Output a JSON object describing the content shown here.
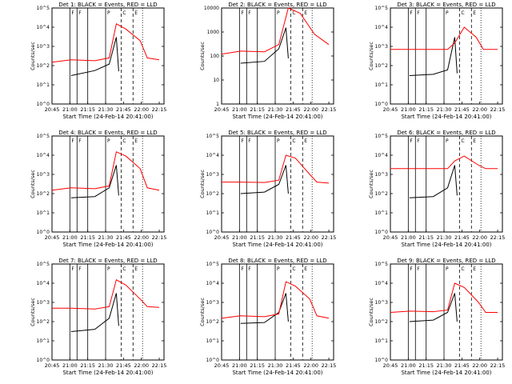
{
  "figure": {
    "xlabel": "Start Time (24-Feb-14 20:41:00)",
    "ylabel": "Counts/sec",
    "x_ticks": [
      "20:45",
      "21:00",
      "21:15",
      "21:30",
      "21:45",
      "22:00",
      "22:15"
    ],
    "colors": {
      "events": "#000000",
      "lld": "#ff0000",
      "frame": "#000000"
    },
    "marker_labels": [
      "F",
      "F",
      "P",
      "C",
      "E"
    ]
  },
  "chart_data": [
    {
      "type": "line",
      "title": "Det 1: BLACK = Events, RED = LLD",
      "xlabel": "Start Time (24-Feb-14 20:41:00)",
      "ylabel": "Counts/sec",
      "yscale": "log",
      "ylim": [
        1,
        100000
      ],
      "y_ticks": [
        "10^0",
        "10^1",
        "10^2",
        "10^3",
        "10^4",
        "10^5"
      ],
      "x_range_min": [
        4,
        98
      ],
      "solid_lines_min": [
        19,
        25,
        34,
        49
      ],
      "dashed_lines_min": [
        62,
        72
      ],
      "dotted_lines_min": [
        80
      ],
      "series": [
        {
          "name": "BLACK",
          "points": [
            [
              20,
              30
            ],
            [
              40,
              55
            ],
            [
              52,
              120
            ],
            [
              58,
              3000
            ],
            [
              60,
              50
            ]
          ]
        },
        {
          "name": "RED",
          "points": [
            [
              4,
              150
            ],
            [
              20,
              200
            ],
            [
              40,
              180
            ],
            [
              52,
              250
            ],
            [
              58,
              15000
            ],
            [
              66,
              8000
            ],
            [
              78,
              2000
            ],
            [
              84,
              250
            ],
            [
              94,
              200
            ]
          ]
        }
      ]
    },
    {
      "type": "line",
      "title": "Det 2: BLACK = Events, RED = LLD",
      "xlabel": "Start Time (24-Feb-14 20:41:00)",
      "ylabel": "Counts/sec",
      "yscale": "log",
      "ylim": [
        1,
        10000
      ],
      "y_ticks": [
        "1",
        "10",
        "100",
        "1000",
        "10000"
      ],
      "x_range_min": [
        4,
        98
      ],
      "solid_lines_min": [
        19,
        25,
        34,
        49
      ],
      "dashed_lines_min": [
        62,
        72
      ],
      "dotted_lines_min": [
        80
      ],
      "series": [
        {
          "name": "BLACK",
          "points": [
            [
              20,
              50
            ],
            [
              40,
              60
            ],
            [
              52,
              200
            ],
            [
              58,
              1500
            ],
            [
              60,
              80
            ]
          ]
        },
        {
          "name": "RED",
          "points": [
            [
              4,
              120
            ],
            [
              20,
              160
            ],
            [
              40,
              150
            ],
            [
              52,
              300
            ],
            [
              60,
              10000
            ],
            [
              70,
              6000
            ],
            [
              82,
              800
            ],
            [
              94,
              300
            ]
          ]
        }
      ]
    },
    {
      "type": "line",
      "title": "Det 3: BLACK = Events, RED = LLD",
      "xlabel": "Start Time (24-Feb-14 20:41:00)",
      "ylabel": "Counts/sec",
      "yscale": "log",
      "ylim": [
        1,
        100000
      ],
      "y_ticks": [
        "10^0",
        "10^1",
        "10^2",
        "10^3",
        "10^4",
        "10^5"
      ],
      "x_range_min": [
        4,
        98
      ],
      "solid_lines_min": [
        19,
        25,
        34,
        49
      ],
      "dashed_lines_min": [
        62,
        72
      ],
      "dotted_lines_min": [
        80
      ],
      "series": [
        {
          "name": "BLACK",
          "points": [
            [
              20,
              30
            ],
            [
              40,
              35
            ],
            [
              52,
              60
            ],
            [
              58,
              3000
            ],
            [
              60,
              40
            ]
          ]
        },
        {
          "name": "RED",
          "points": [
            [
              4,
              700
            ],
            [
              52,
              700
            ],
            [
              58,
              1500
            ],
            [
              66,
              10000
            ],
            [
              76,
              3000
            ],
            [
              82,
              700
            ],
            [
              94,
              700
            ]
          ]
        }
      ]
    },
    {
      "type": "line",
      "title": "Det 4: BLACK = Events, RED = LLD",
      "xlabel": "Start Time (24-Feb-14 20:41:00)",
      "ylabel": "Counts/sec",
      "yscale": "log",
      "ylim": [
        1,
        100000
      ],
      "y_ticks": [
        "10^0",
        "10^1",
        "10^2",
        "10^3",
        "10^4",
        "10^5"
      ],
      "x_range_min": [
        4,
        98
      ],
      "solid_lines_min": [
        19,
        25,
        34,
        49
      ],
      "dashed_lines_min": [
        62,
        72
      ],
      "dotted_lines_min": [
        80
      ],
      "series": [
        {
          "name": "BLACK",
          "points": [
            [
              20,
              60
            ],
            [
              40,
              70
            ],
            [
              52,
              200
            ],
            [
              58,
              3000
            ],
            [
              60,
              80
            ]
          ]
        },
        {
          "name": "RED",
          "points": [
            [
              4,
              150
            ],
            [
              20,
              200
            ],
            [
              40,
              180
            ],
            [
              52,
              250
            ],
            [
              58,
              15000
            ],
            [
              66,
              9000
            ],
            [
              78,
              2000
            ],
            [
              84,
              200
            ],
            [
              94,
              150
            ]
          ]
        }
      ]
    },
    {
      "type": "line",
      "title": "Det 5: BLACK = Events, RED = LLD",
      "xlabel": "Start Time (24-Feb-14 20:41:00)",
      "ylabel": "Counts/sec",
      "yscale": "log",
      "ylim": [
        1,
        100000
      ],
      "y_ticks": [
        "10^0",
        "10^1",
        "10^2",
        "10^3",
        "10^4",
        "10^5"
      ],
      "x_range_min": [
        4,
        98
      ],
      "solid_lines_min": [
        19,
        25,
        34,
        49
      ],
      "dashed_lines_min": [
        62,
        72
      ],
      "dotted_lines_min": [
        80
      ],
      "series": [
        {
          "name": "BLACK",
          "points": [
            [
              20,
              100
            ],
            [
              40,
              120
            ],
            [
              52,
              300
            ],
            [
              58,
              3000
            ],
            [
              60,
              100
            ]
          ]
        },
        {
          "name": "RED",
          "points": [
            [
              4,
              400
            ],
            [
              20,
              400
            ],
            [
              40,
              380
            ],
            [
              52,
              500
            ],
            [
              58,
              10000
            ],
            [
              66,
              7000
            ],
            [
              78,
              1000
            ],
            [
              84,
              400
            ],
            [
              94,
              350
            ]
          ]
        }
      ]
    },
    {
      "type": "line",
      "title": "Det 6: BLACK = Events, RED = LLD",
      "xlabel": "Start Time (24-Feb-14 20:41:00)",
      "ylabel": "Counts/sec",
      "yscale": "log",
      "ylim": [
        1,
        100000
      ],
      "y_ticks": [
        "10^0",
        "10^1",
        "10^2",
        "10^3",
        "10^4",
        "10^5"
      ],
      "x_range_min": [
        4,
        98
      ],
      "solid_lines_min": [
        19,
        25,
        34,
        49
      ],
      "dashed_lines_min": [
        62,
        72
      ],
      "dotted_lines_min": [
        80
      ],
      "series": [
        {
          "name": "BLACK",
          "points": [
            [
              20,
              60
            ],
            [
              40,
              70
            ],
            [
              52,
              200
            ],
            [
              58,
              3000
            ],
            [
              60,
              80
            ]
          ]
        },
        {
          "name": "RED",
          "points": [
            [
              4,
              2000
            ],
            [
              52,
              2000
            ],
            [
              58,
              5000
            ],
            [
              66,
              9000
            ],
            [
              78,
              3000
            ],
            [
              84,
              2000
            ],
            [
              94,
              2000
            ]
          ]
        }
      ]
    },
    {
      "type": "line",
      "title": "Det 7: BLACK = Events, RED = LLD",
      "xlabel": "Start Time (24-Feb-14 20:41:00)",
      "ylabel": "Counts/sec",
      "yscale": "log",
      "ylim": [
        1,
        100000
      ],
      "y_ticks": [
        "10^0",
        "10^1",
        "10^2",
        "10^3",
        "10^4",
        "10^5"
      ],
      "x_range_min": [
        4,
        98
      ],
      "solid_lines_min": [
        19,
        25,
        34,
        49
      ],
      "dashed_lines_min": [
        62,
        72
      ],
      "dotted_lines_min": [
        80
      ],
      "series": [
        {
          "name": "BLACK",
          "points": [
            [
              20,
              30
            ],
            [
              40,
              40
            ],
            [
              52,
              150
            ],
            [
              58,
              3000
            ],
            [
              60,
              60
            ]
          ]
        },
        {
          "name": "RED",
          "points": [
            [
              4,
              500
            ],
            [
              20,
              500
            ],
            [
              40,
              450
            ],
            [
              52,
              600
            ],
            [
              58,
              15000
            ],
            [
              66,
              8000
            ],
            [
              78,
              1500
            ],
            [
              84,
              600
            ],
            [
              94,
              550
            ]
          ]
        }
      ]
    },
    {
      "type": "line",
      "title": "Det 8: BLACK = Events, RED = LLD",
      "xlabel": "Start Time (24-Feb-14 20:41:00)",
      "ylabel": "Counts/sec",
      "yscale": "log",
      "ylim": [
        1,
        100000
      ],
      "y_ticks": [
        "10^0",
        "10^1",
        "10^2",
        "10^3",
        "10^4",
        "10^5"
      ],
      "x_range_min": [
        4,
        98
      ],
      "solid_lines_min": [
        19,
        25,
        34,
        49
      ],
      "dashed_lines_min": [
        62,
        72
      ],
      "dotted_lines_min": [
        80
      ],
      "series": [
        {
          "name": "BLACK",
          "points": [
            [
              20,
              80
            ],
            [
              40,
              90
            ],
            [
              52,
              300
            ],
            [
              58,
              3000
            ],
            [
              60,
              100
            ]
          ]
        },
        {
          "name": "RED",
          "points": [
            [
              4,
              150
            ],
            [
              20,
              200
            ],
            [
              40,
              180
            ],
            [
              52,
              250
            ],
            [
              58,
              12000
            ],
            [
              66,
              7000
            ],
            [
              78,
              1500
            ],
            [
              84,
              200
            ],
            [
              94,
              150
            ]
          ]
        }
      ]
    },
    {
      "type": "line",
      "title": "Det 9: BLACK = Events, RED = LLD",
      "xlabel": "Start Time (24-Feb-14 20:41:00)",
      "ylabel": "Counts/sec",
      "yscale": "log",
      "ylim": [
        1,
        100000
      ],
      "y_ticks": [
        "10^0",
        "10^1",
        "10^2",
        "10^3",
        "10^4",
        "10^5"
      ],
      "x_range_min": [
        4,
        98
      ],
      "solid_lines_min": [
        19,
        25,
        34,
        49
      ],
      "dashed_lines_min": [
        62,
        72
      ],
      "dotted_lines_min": [
        80
      ],
      "series": [
        {
          "name": "BLACK",
          "points": [
            [
              20,
              100
            ],
            [
              40,
              120
            ],
            [
              52,
              300
            ],
            [
              58,
              3000
            ],
            [
              60,
              100
            ]
          ]
        },
        {
          "name": "RED",
          "points": [
            [
              4,
              300
            ],
            [
              20,
              350
            ],
            [
              40,
              330
            ],
            [
              52,
              400
            ],
            [
              58,
              10000
            ],
            [
              66,
              6000
            ],
            [
              78,
              1000
            ],
            [
              84,
              300
            ],
            [
              94,
              300
            ]
          ]
        }
      ]
    }
  ]
}
